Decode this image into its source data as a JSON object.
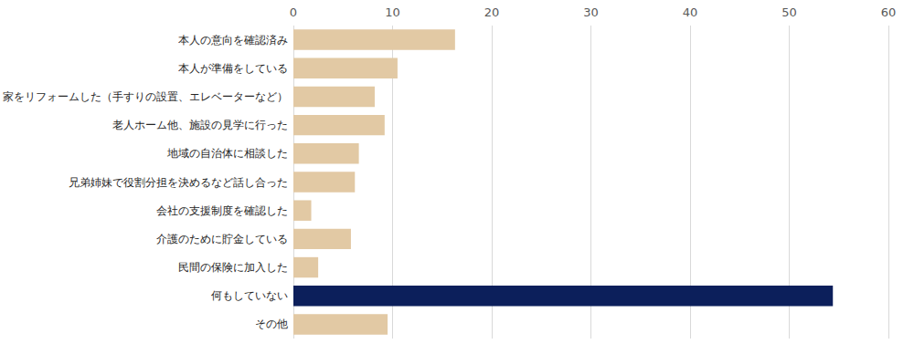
{
  "chart_data": {
    "type": "bar",
    "orientation": "horizontal",
    "categories": [
      "本人の意向を確認済み",
      "本人が準備をしている",
      "家をリフォームした（手すりの設置、エレベーターなど）",
      "老人ホーム他、施設の見学に行った",
      "地域の自治体に相談した",
      "兄弟姉妹で役割分担を決めるなど話し合った",
      "会社の支援制度を確認した",
      "介護のために貯金している",
      "民間の保険に加入した",
      "何もしていない",
      "その他"
    ],
    "values": [
      16.3,
      10.5,
      8.2,
      9.2,
      6.6,
      6.2,
      1.8,
      5.8,
      2.5,
      54.4,
      9.5
    ],
    "colors": [
      "#e2c9a4",
      "#e2c9a4",
      "#e2c9a4",
      "#e2c9a4",
      "#e2c9a4",
      "#e2c9a4",
      "#e2c9a4",
      "#e2c9a4",
      "#e2c9a4",
      "#0c1f5b",
      "#e2c9a4"
    ],
    "xlim": [
      0,
      60
    ],
    "xticks": [
      0,
      10,
      20,
      30,
      40,
      50,
      60
    ],
    "grid": true
  }
}
